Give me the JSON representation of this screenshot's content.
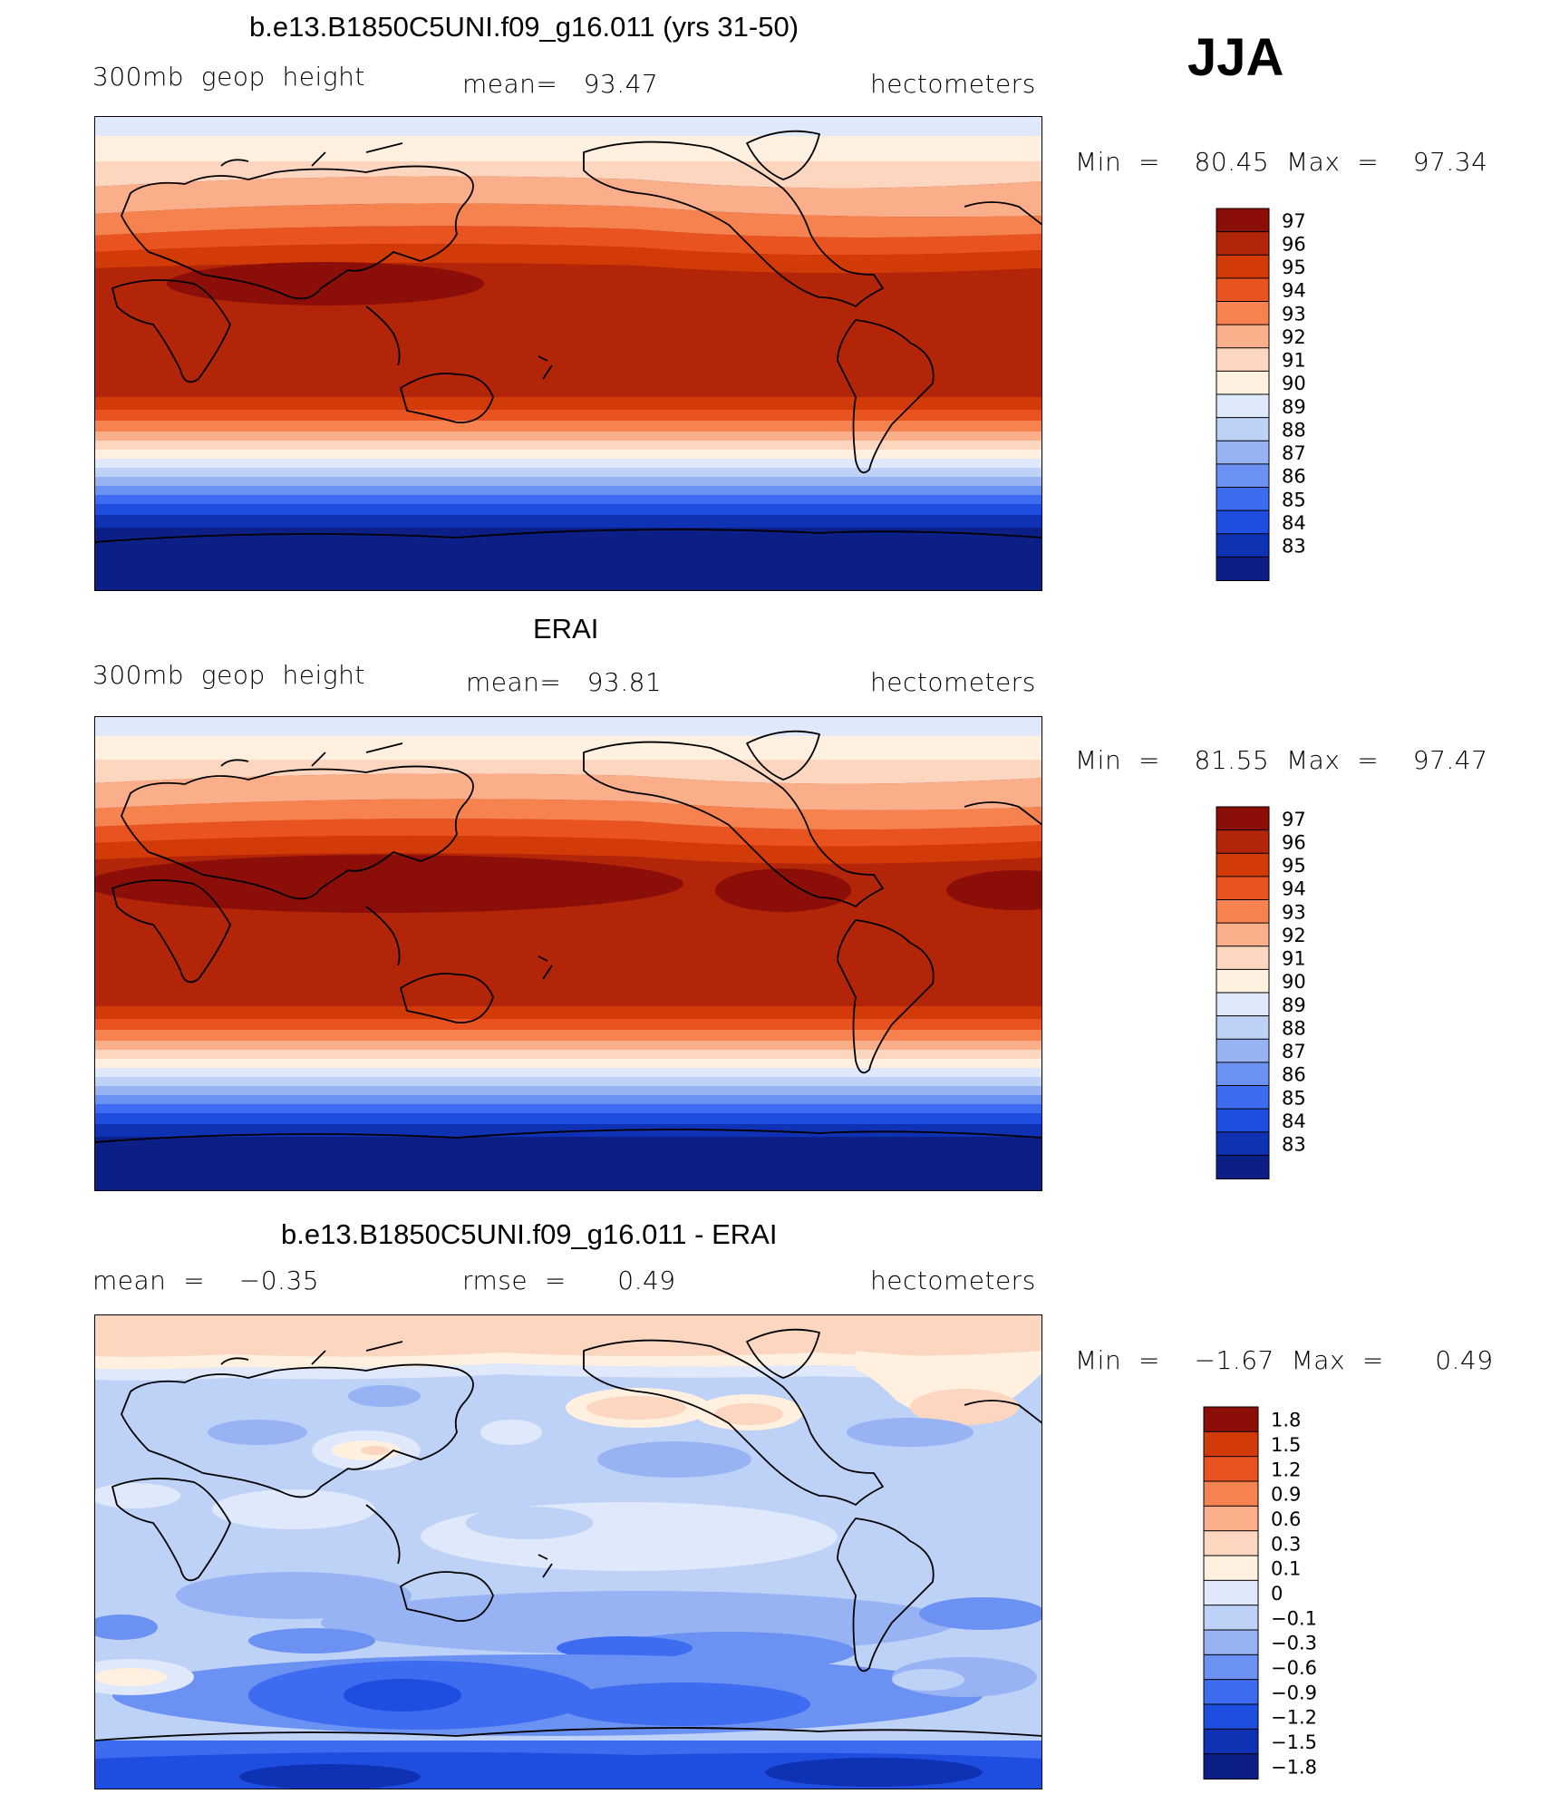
{
  "season": "JJA",
  "colors": {
    "warm_scale": [
      "#0c1f86",
      "#0f31b3",
      "#1e4ee0",
      "#3d6cf0",
      "#6b91f2",
      "#98b3f4",
      "#bed1f7",
      "#dfe9fb",
      "#fff0df",
      "#fdd6c0",
      "#fbae8a",
      "#f5824f",
      "#e95320",
      "#d23a08",
      "#b32508",
      "#8b0e08"
    ],
    "diff_scale": [
      "#0c1f86",
      "#0f31b3",
      "#1e4ee0",
      "#3d6cf0",
      "#6b91f2",
      "#98b3f4",
      "#bed1f7",
      "#dfe9fb",
      "#fff0df",
      "#fdd6c0",
      "#fbae8a",
      "#f5824f",
      "#e95320",
      "#d23a08",
      "#8b0e08"
    ],
    "coast": "#000000"
  },
  "panels": [
    {
      "title": "b.e13.B1850C5UNI.f09_g16.011 (yrs 31-50)",
      "left_label": "300mb  geop  height",
      "center_label": "mean=   93.47",
      "right_label": "hectometers",
      "stats": "Min  =    80.45  Max  =    97.34",
      "colorbar": {
        "ticks": [
          "97",
          "96",
          "95",
          "94",
          "93",
          "92",
          "91",
          "90",
          "89",
          "88",
          "87",
          "86",
          "85",
          "84",
          "83"
        ]
      }
    },
    {
      "title": "ERAI",
      "left_label": "300mb  geop  height",
      "center_label": "mean=   93.81",
      "right_label": "hectometers",
      "stats": "Min  =    81.55  Max  =    97.47",
      "colorbar": {
        "ticks": [
          "97",
          "96",
          "95",
          "94",
          "93",
          "92",
          "91",
          "90",
          "89",
          "88",
          "87",
          "86",
          "85",
          "84",
          "83"
        ]
      }
    },
    {
      "title": "b.e13.B1850C5UNI.f09_g16.011 - ERAI",
      "left_label": "mean  =    −0.35",
      "center_label": "rmse  =      0.49",
      "right_label": "hectometers",
      "stats": "Min  =    −1.67  Max  =      0.49",
      "colorbar": {
        "ticks": [
          "1.8",
          "1.5",
          "1.2",
          "0.9",
          "0.6",
          "0.3",
          "0.1",
          "0",
          "−0.1",
          "−0.3",
          "−0.6",
          "−0.9",
          "−1.2",
          "−1.5",
          "−1.8"
        ]
      }
    }
  ]
}
